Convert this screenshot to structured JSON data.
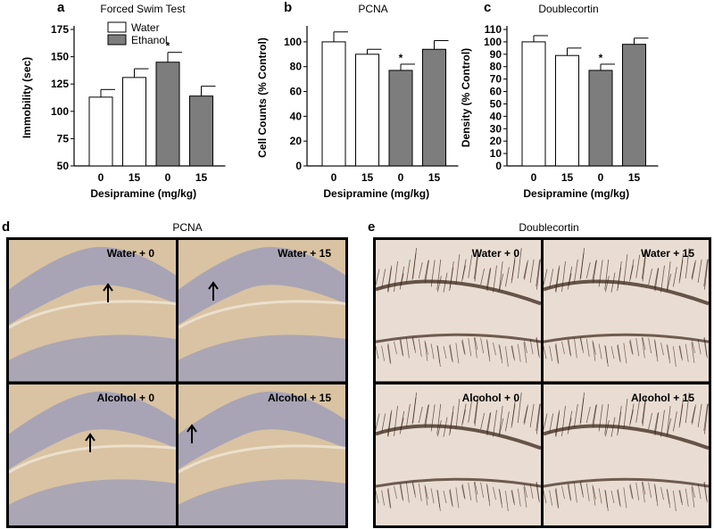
{
  "chart_data": [
    {
      "type": "bar",
      "panel_label": "a",
      "title": "Forced Swim Test",
      "ylabel": "Immobility (sec)",
      "xlabel": "Desipramine (mg/kg)",
      "categories": [
        "0",
        "15",
        "0",
        "15"
      ],
      "values": [
        113,
        131,
        145,
        114
      ],
      "errors": [
        7,
        8,
        9,
        9
      ],
      "groups": [
        "Water",
        "Water",
        "Ethanol",
        "Ethanol"
      ],
      "significant": [
        false,
        false,
        true,
        false
      ],
      "ylim": [
        50,
        175
      ],
      "yticks": [
        "50",
        "75",
        "100",
        "125",
        "150",
        "175"
      ],
      "legend": [
        "Water",
        "Ethanol"
      ],
      "legend_position": "top-left",
      "sig_marker": "*"
    },
    {
      "type": "bar",
      "panel_label": "b",
      "title": "PCNA",
      "ylabel": "Cell Counts (% Control)",
      "xlabel": "Desipramine (mg/kg)",
      "categories": [
        "0",
        "15",
        "0",
        "15"
      ],
      "values": [
        100,
        90,
        77,
        94
      ],
      "errors": [
        8,
        4,
        5,
        7
      ],
      "groups": [
        "Water",
        "Water",
        "Ethanol",
        "Ethanol"
      ],
      "significant": [
        false,
        false,
        true,
        false
      ],
      "ylim": [
        0,
        110
      ],
      "yticks": [
        "0",
        "20",
        "40",
        "60",
        "80",
        "100"
      ],
      "sig_marker": "*"
    },
    {
      "type": "bar",
      "panel_label": "c",
      "title": "Doublecortin",
      "ylabel": "Density (% Control)",
      "xlabel": "Desipramine (mg/kg)",
      "categories": [
        "0",
        "15",
        "0",
        "15"
      ],
      "values": [
        100,
        89,
        77,
        98
      ],
      "errors": [
        5,
        6,
        5,
        5
      ],
      "groups": [
        "Water",
        "Water",
        "Ethanol",
        "Ethanol"
      ],
      "significant": [
        false,
        false,
        true,
        false
      ],
      "ylim": [
        0,
        110
      ],
      "yticks": [
        "0",
        "10",
        "20",
        "30",
        "40",
        "50",
        "60",
        "70",
        "80",
        "90",
        "100",
        "110"
      ],
      "sig_marker": "*"
    }
  ],
  "micrographs": [
    {
      "panel_label": "d",
      "title": "PCNA",
      "tiles": [
        "Water + 0",
        "Water + 15",
        "Alcohol + 0",
        "Alcohol + 15"
      ]
    },
    {
      "panel_label": "e",
      "title": "Doublecortin",
      "tiles": [
        "Water + 0",
        "Water + 15",
        "Alcohol + 0",
        "Alcohol + 15"
      ]
    }
  ],
  "colors": {
    "water": "#ffffff",
    "ethanol": "#7d7d7d",
    "pcna_stain": "#d9c3a2",
    "pcna_layer": "#9f9fb8",
    "dcx_stain": "#e9ddd3",
    "dcx_cells": "#3a2418"
  }
}
